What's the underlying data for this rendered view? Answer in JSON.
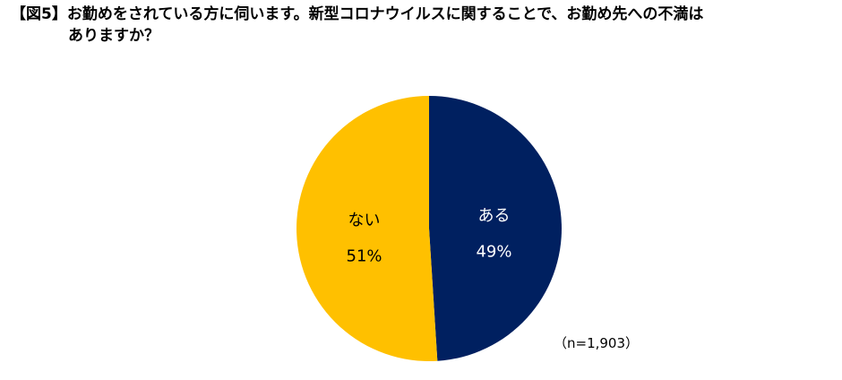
{
  "title_lines": [
    "【図5】お勤めをされている方に伺います。新型コロナウイルスに関することで、お勤め先への不満は",
    "ありますか？"
  ],
  "chart_data": {
    "type": "pie",
    "slices": [
      {
        "label": "ある",
        "value": 49,
        "value_text": "49%",
        "color": "#002060",
        "text_color": "#ffffff"
      },
      {
        "label": "ない",
        "value": 51,
        "value_text": "51%",
        "color": "#ffc000",
        "text_color": "#000000"
      }
    ],
    "start": "top",
    "direction": "clockwise"
  },
  "note": "（n=1,903）"
}
